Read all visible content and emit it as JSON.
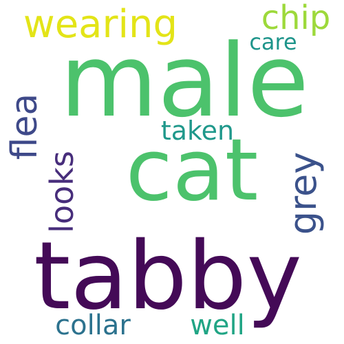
{
  "words": {
    "male": {
      "text": "male",
      "color": "#4cc26c"
    },
    "cat": {
      "text": "cat",
      "color": "#4cc26c"
    },
    "tabby": {
      "text": "tabby",
      "color": "#440a57"
    },
    "wearing": {
      "text": "wearing",
      "color": "#e3e418"
    },
    "chip": {
      "text": "chip",
      "color": "#9dd93b"
    },
    "care": {
      "text": "care",
      "color": "#1f958b"
    },
    "flea": {
      "text": "flea",
      "color": "#3e4989"
    },
    "looks": {
      "text": "looks",
      "color": "#472d7b"
    },
    "taken": {
      "text": "taken",
      "color": "#1f988b"
    },
    "grey": {
      "text": "grey",
      "color": "#3b528b"
    },
    "collar": {
      "text": "collar",
      "color": "#2c728e"
    },
    "well": {
      "text": "well",
      "color": "#21a585"
    }
  }
}
